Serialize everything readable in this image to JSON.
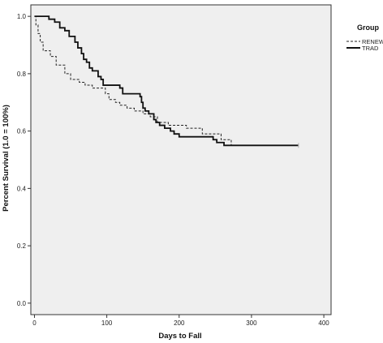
{
  "chart_data": {
    "type": "line",
    "subtype": "kaplan-meier step",
    "xlabel": "Days to Fall",
    "ylabel": "Percent Survival (1.0 = 100%)",
    "xlim": [
      -5,
      410
    ],
    "ylim": [
      -0.04,
      1.04
    ],
    "x_ticks": [
      0,
      100,
      200,
      300,
      400
    ],
    "x_tick_labels": [
      "0",
      "100",
      "200",
      "300",
      "400"
    ],
    "y_ticks": [
      0.0,
      0.2,
      0.4,
      0.6,
      0.8,
      1.0
    ],
    "y_tick_labels": [
      "0.0",
      "0.2",
      "0.4",
      "0.6",
      "0.8",
      "1.0"
    ],
    "grid": false,
    "background": "#efefef",
    "legend": {
      "title": "Group",
      "placement": "right, outside plot"
    },
    "series": [
      {
        "name": "RENEW",
        "line_style": "dashed",
        "color": "#222222",
        "points": [
          [
            0,
            1.0
          ],
          [
            2,
            0.97
          ],
          [
            5,
            0.94
          ],
          [
            8,
            0.91
          ],
          [
            12,
            0.88
          ],
          [
            22,
            0.86
          ],
          [
            30,
            0.83
          ],
          [
            42,
            0.8
          ],
          [
            50,
            0.78
          ],
          [
            62,
            0.77
          ],
          [
            70,
            0.76
          ],
          [
            80,
            0.75
          ],
          [
            98,
            0.73
          ],
          [
            103,
            0.71
          ],
          [
            112,
            0.7
          ],
          [
            118,
            0.69
          ],
          [
            128,
            0.68
          ],
          [
            138,
            0.67
          ],
          [
            150,
            0.66
          ],
          [
            160,
            0.65
          ],
          [
            170,
            0.63
          ],
          [
            185,
            0.62
          ],
          [
            210,
            0.61
          ],
          [
            232,
            0.59
          ],
          [
            258,
            0.57
          ],
          [
            272,
            0.55
          ],
          [
            365,
            0.55
          ]
        ]
      },
      {
        "name": "TRAD",
        "line_style": "solid",
        "color": "#111111",
        "points": [
          [
            0,
            1.0
          ],
          [
            20,
            0.99
          ],
          [
            28,
            0.98
          ],
          [
            35,
            0.96
          ],
          [
            42,
            0.95
          ],
          [
            48,
            0.93
          ],
          [
            56,
            0.91
          ],
          [
            60,
            0.89
          ],
          [
            65,
            0.87
          ],
          [
            68,
            0.85
          ],
          [
            72,
            0.84
          ],
          [
            76,
            0.82
          ],
          [
            80,
            0.81
          ],
          [
            88,
            0.79
          ],
          [
            92,
            0.78
          ],
          [
            95,
            0.76
          ],
          [
            118,
            0.75
          ],
          [
            122,
            0.73
          ],
          [
            146,
            0.72
          ],
          [
            148,
            0.7
          ],
          [
            150,
            0.68
          ],
          [
            153,
            0.67
          ],
          [
            158,
            0.66
          ],
          [
            165,
            0.64
          ],
          [
            168,
            0.63
          ],
          [
            173,
            0.62
          ],
          [
            180,
            0.61
          ],
          [
            188,
            0.6
          ],
          [
            193,
            0.59
          ],
          [
            200,
            0.58
          ],
          [
            247,
            0.57
          ],
          [
            252,
            0.56
          ],
          [
            262,
            0.55
          ],
          [
            365,
            0.55
          ]
        ]
      }
    ]
  }
}
